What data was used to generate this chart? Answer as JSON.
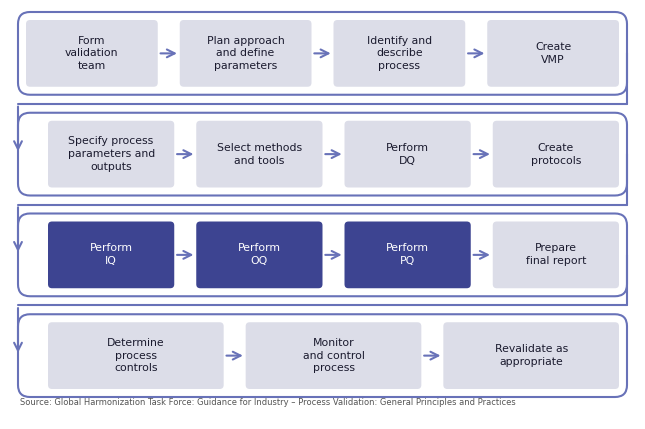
{
  "bg_color": "#ffffff",
  "light_box_color": "#dcdde8",
  "dark_box_color": "#3d4491",
  "light_text_color": "#1a1a2e",
  "dark_text_color": "#ffffff",
  "border_color": "#6872b8",
  "arrow_color": "#6872b8",
  "source_text": "Source: Global Harmonization Task Force: Guidance for Industry – Process Validation: General Principles and Practices",
  "rows": [
    {
      "boxes": [
        {
          "text": "Form\nvalidation\nteam",
          "style": "light"
        },
        {
          "text": "Plan approach\nand define\nparameters",
          "style": "light"
        },
        {
          "text": "Identify and\ndescribe\nprocess",
          "style": "light"
        },
        {
          "text": "Create\nVMP",
          "style": "light"
        }
      ],
      "has_left_entry": false,
      "has_right_exit": true
    },
    {
      "boxes": [
        {
          "text": "Specify process\nparameters and\noutputs",
          "style": "light"
        },
        {
          "text": "Select methods\nand tools",
          "style": "light"
        },
        {
          "text": "Perform\nDQ",
          "style": "light"
        },
        {
          "text": "Create\nprotocols",
          "style": "light"
        }
      ],
      "has_left_entry": true,
      "has_right_exit": true
    },
    {
      "boxes": [
        {
          "text": "Perform\nIQ",
          "style": "dark"
        },
        {
          "text": "Perform\nOQ",
          "style": "dark"
        },
        {
          "text": "Perform\nPQ",
          "style": "dark"
        },
        {
          "text": "Prepare\nfinal report",
          "style": "light"
        }
      ],
      "has_left_entry": true,
      "has_right_exit": true
    },
    {
      "boxes": [
        {
          "text": "Determine\nprocess\ncontrols",
          "style": "light"
        },
        {
          "text": "Monitor\nand control\nprocess",
          "style": "light"
        },
        {
          "text": "Revalidate as\nappropriate",
          "style": "light"
        }
      ],
      "has_left_entry": true,
      "has_right_exit": false
    }
  ]
}
